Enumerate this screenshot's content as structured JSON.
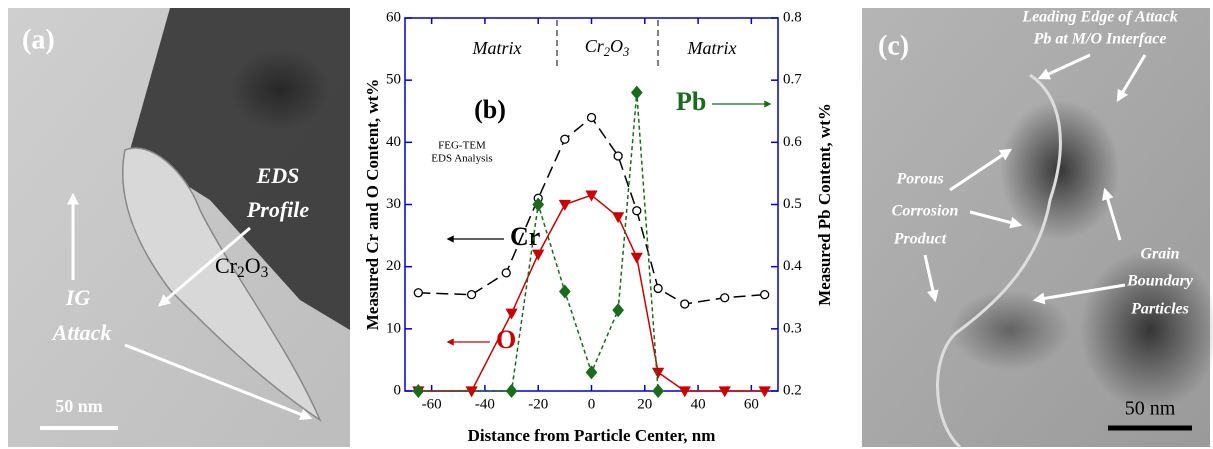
{
  "panels": {
    "a": {
      "label": "(a)",
      "profile_1": "EDS",
      "profile_2": "Profile",
      "attack_1": "IG",
      "attack_2": "Attack",
      "oxide": "Cr2O3",
      "scale": "50 nm"
    },
    "c": {
      "label": "(c)",
      "edge_1": "Leading Edge of Attack",
      "edge_2": "Pb at M/O Interface",
      "porous_1": "Porous",
      "porous_2": "Corrosion",
      "porous_3": "Product",
      "grain_1": "Grain",
      "grain_2": "Boundary",
      "grain_3": "Particles",
      "scale": "50 nm"
    }
  },
  "chart_data": {
    "type": "line",
    "xlabel": "Distance from Particle Center, nm",
    "ylabel": "Measured Cr and O Content, wt%",
    "y2label": "Measured Pb Content, wt%",
    "xlim": [
      -70,
      70
    ],
    "xticks": [
      -60,
      -40,
      -20,
      0,
      20,
      40,
      60
    ],
    "ylim": [
      0,
      60
    ],
    "yticks": [
      0,
      10,
      20,
      30,
      40,
      50,
      60
    ],
    "y2lim": [
      0.2,
      0.8
    ],
    "y2ticks": [
      0.2,
      0.3,
      0.4,
      0.5,
      0.6,
      0.7,
      0.8
    ],
    "axis_color": "#0000cc",
    "annotations": {
      "panel": "(b)",
      "method_1": "FEG-TEM",
      "method_2": "EDS Analysis",
      "region_left": "Matrix",
      "region_mid": "Cr2O3",
      "region_right": "Matrix"
    },
    "series": [
      {
        "name": "Cr",
        "color": "#000000",
        "marker": "circle",
        "dashed": true,
        "x": [
          -65,
          -45,
          -32,
          -20,
          -10,
          0,
          10,
          17,
          25,
          35,
          50,
          65
        ],
        "values": [
          15.8,
          15.5,
          19,
          31,
          40.5,
          44,
          37.8,
          29,
          16.5,
          14,
          15,
          15.5
        ]
      },
      {
        "name": "O",
        "color": "#cc0000",
        "marker": "triangle-down",
        "dashed": false,
        "x": [
          -65,
          -45,
          -30,
          -20,
          -10,
          0,
          10,
          17,
          25,
          35,
          50,
          65
        ],
        "values": [
          0,
          0,
          12.5,
          22,
          30,
          31.5,
          28,
          21.5,
          3,
          0,
          0,
          0
        ]
      },
      {
        "name": "Pb",
        "color": "#1a6b1a",
        "marker": "diamond",
        "dashed": true,
        "axis": "y2",
        "x": [
          -65,
          -30,
          -20,
          -10,
          0,
          10,
          17,
          25
        ],
        "values": [
          0.2,
          0.2,
          0.5,
          0.36,
          0.23,
          0.33,
          0.68,
          0.2
        ]
      }
    ]
  }
}
